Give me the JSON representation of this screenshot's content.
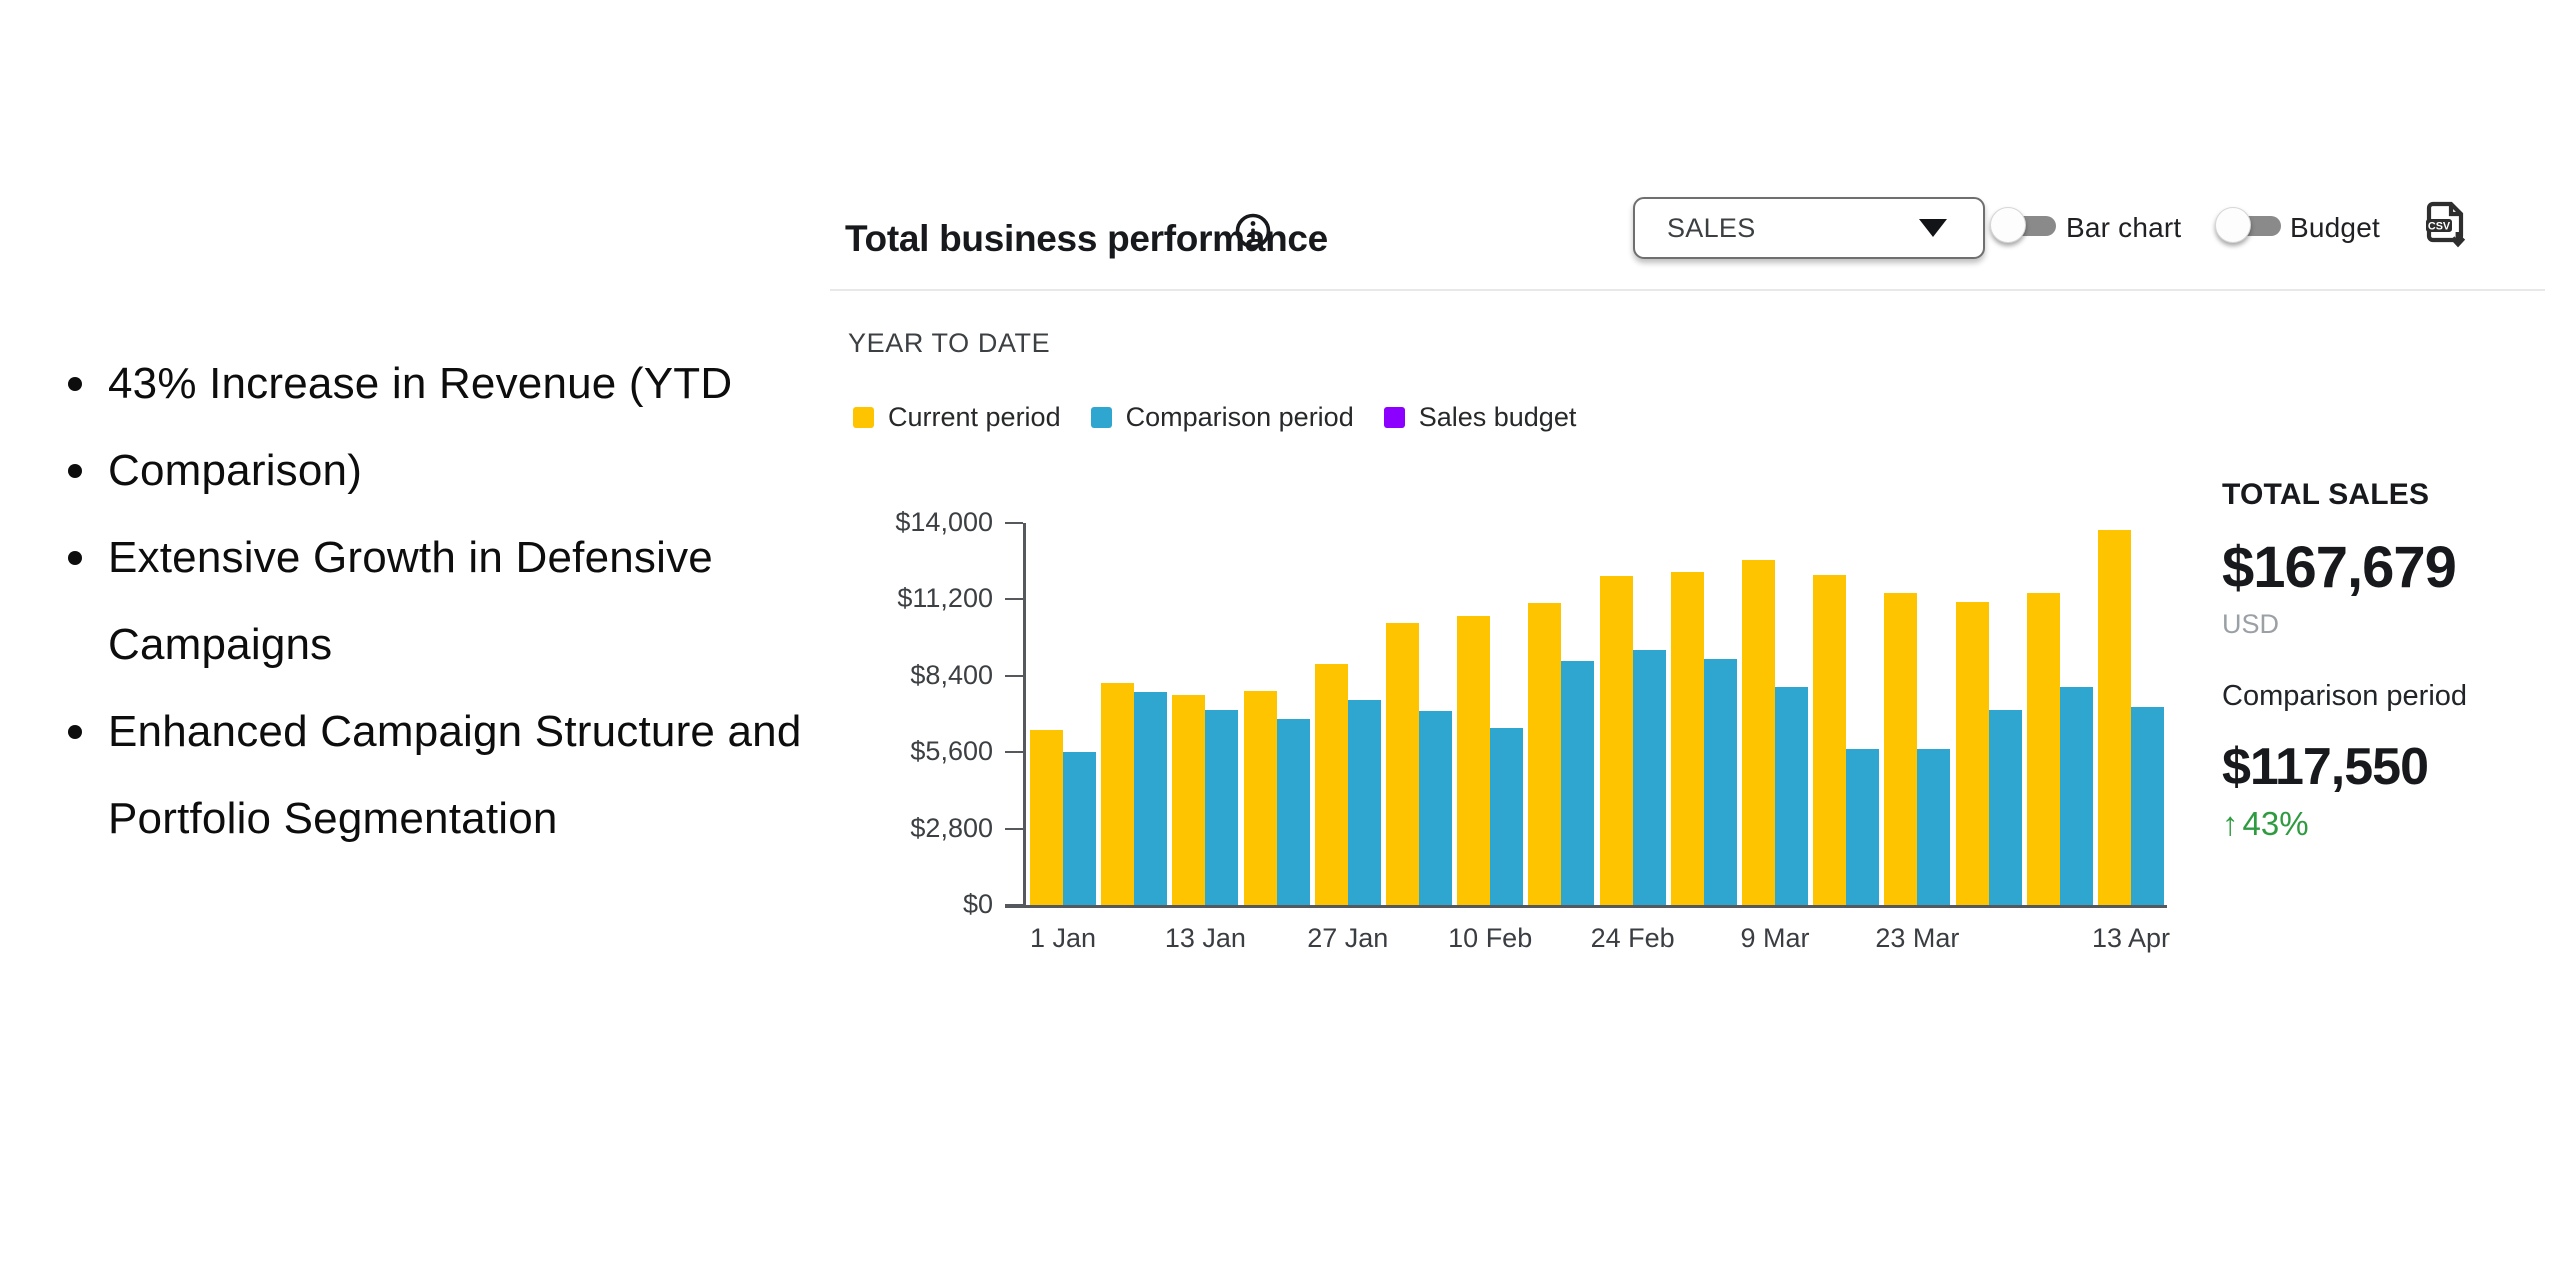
{
  "slide": {
    "bullets": [
      {
        "lines": [
          "43% Increase in Revenue (YTD"
        ]
      },
      {
        "lines": [
          "Comparison)"
        ]
      },
      {
        "lines": [
          "Extensive Growth in Defensive",
          "Campaigns"
        ]
      },
      {
        "lines": [
          "Enhanced Campaign Structure and",
          "Portfolio Segmentation"
        ]
      }
    ]
  },
  "dashboard": {
    "title": "Total business performance",
    "period_label": "YEAR TO DATE",
    "controls": {
      "metric_select": {
        "value": "SALES",
        "icon": "chevron-down-icon"
      },
      "toggles": [
        {
          "label": "Bar chart",
          "on": false
        },
        {
          "label": "Budget",
          "on": false
        }
      ],
      "export_icon": "csv-download-icon"
    },
    "summary": {
      "total_label": "TOTAL SALES",
      "total_value": "$167,679",
      "currency": "USD",
      "comparison_label": "Comparison period",
      "comparison_value": "$117,550",
      "change_arrow": "↑",
      "change_text": "43%",
      "change_color": "#2e9b40"
    }
  },
  "chart_data": {
    "type": "bar",
    "title": "YEAR TO DATE",
    "categories": [
      "1 Jan",
      "",
      "13 Jan",
      "",
      "27 Jan",
      "",
      "10 Feb",
      "",
      "24 Feb",
      "",
      "9 Mar",
      "",
      "23 Mar",
      "",
      "",
      "13 Apr"
    ],
    "series": [
      {
        "name": "Current period",
        "color": "#ffc400",
        "values": [
          6400,
          8150,
          7700,
          7850,
          8850,
          10350,
          10600,
          11050,
          12050,
          12200,
          12650,
          12100,
          11450,
          11100,
          11450,
          13750
        ]
      },
      {
        "name": "Comparison period",
        "color": "#2fa6d0",
        "values": [
          5600,
          7800,
          7150,
          6800,
          7500,
          7100,
          6500,
          8950,
          9350,
          9000,
          8000,
          5700,
          5700,
          7150,
          8000,
          7250
        ]
      },
      {
        "name": "Sales budget",
        "color": "#8c00ff",
        "values": []
      }
    ],
    "xlabel": "",
    "ylabel": "",
    "ylim": [
      0,
      14000
    ],
    "ytick_values": [
      0,
      2800,
      5600,
      8400,
      11200,
      14000
    ],
    "ytick_labels": [
      "$0",
      "$2,800",
      "$5,600",
      "$8,400",
      "$11,200",
      "$14,000"
    ],
    "grid": false,
    "legend_position": "top-left"
  }
}
